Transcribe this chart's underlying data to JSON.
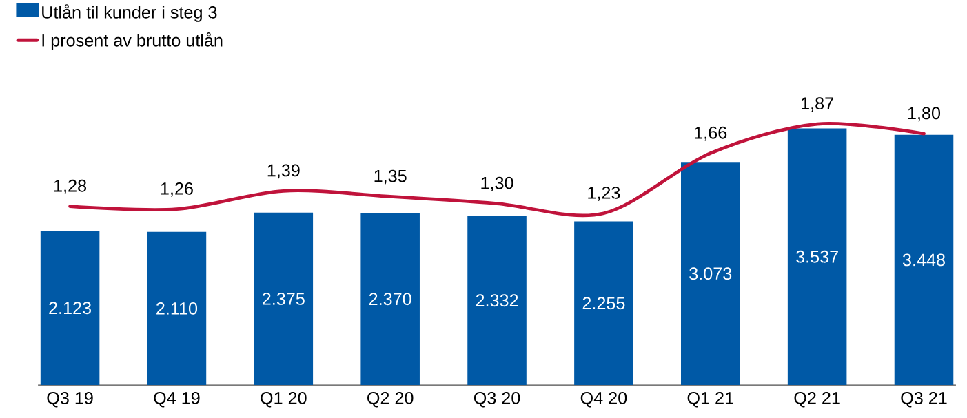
{
  "chart_data": {
    "type": "bar",
    "categories": [
      "Q3 19",
      "Q4 19",
      "Q1 20",
      "Q2 20",
      "Q3 20",
      "Q4 20",
      "Q1 21",
      "Q2 21",
      "Q3 21"
    ],
    "series": [
      {
        "name": "Utlån til kunder i steg 3",
        "color": "#0059a6",
        "values": [
          2123,
          2110,
          2375,
          2370,
          2332,
          2255,
          3073,
          3537,
          3448
        ],
        "value_labels": [
          "2.123",
          "2.110",
          "2.375",
          "2.370",
          "2.332",
          "2.255",
          "3.073",
          "3.537",
          "3.448"
        ]
      },
      {
        "name": "I prosent av brutto utlån",
        "type": "line",
        "axis": "y2",
        "color": "#c0133b",
        "values": [
          1.28,
          1.26,
          1.39,
          1.35,
          1.3,
          1.23,
          1.66,
          1.87,
          1.8
        ],
        "value_labels": [
          "1,28",
          "1,26",
          "1,39",
          "1,35",
          "1,30",
          "1,23",
          "1,66",
          "1,87",
          "1,80"
        ]
      }
    ],
    "legend": "top left"
  }
}
